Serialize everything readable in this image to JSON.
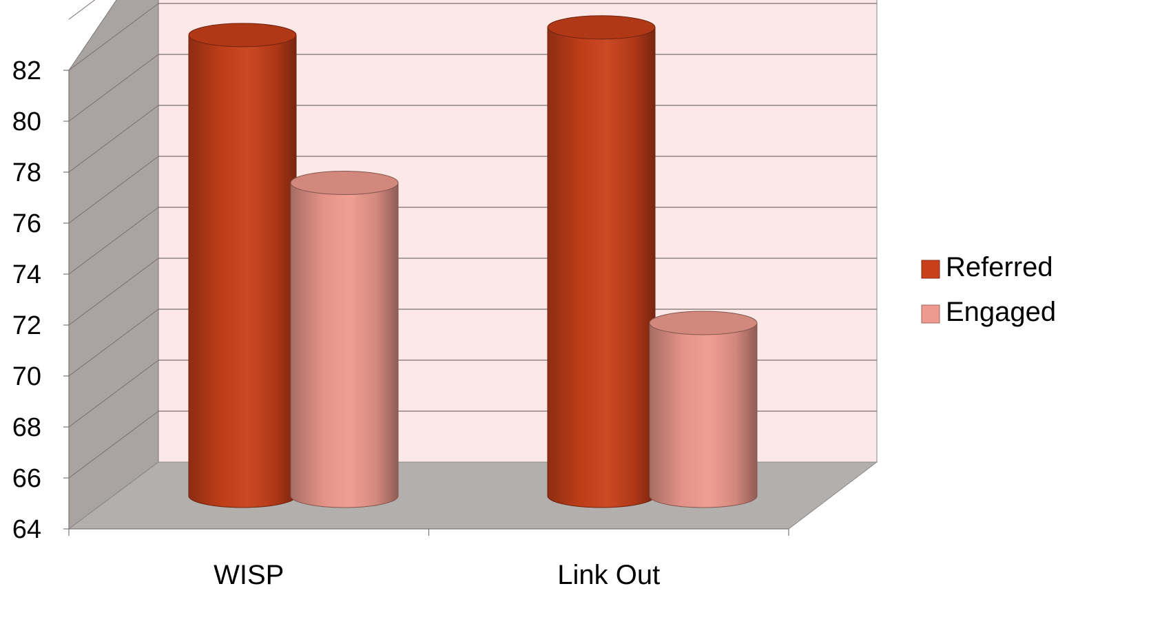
{
  "chart_data": {
    "type": "bar",
    "style": "3d-cylinder",
    "categories": [
      "WISP",
      "Link Out"
    ],
    "series": [
      {
        "name": "Referred",
        "values": [
          82.3,
          82.6
        ],
        "color": "#C8401A"
      },
      {
        "name": "Engaged",
        "values": [
          76.5,
          71.0
        ],
        "color": "#EF9A8E"
      }
    ],
    "ylim": [
      64,
      82
    ],
    "yticks": [
      64,
      66,
      68,
      70,
      72,
      74,
      76,
      78,
      80,
      82
    ],
    "grid": true,
    "legend_position": "right",
    "wall_color": "#FCE9E7",
    "side_wall_color": "#A9A4A2",
    "floor_color": "#B3AFAD"
  }
}
